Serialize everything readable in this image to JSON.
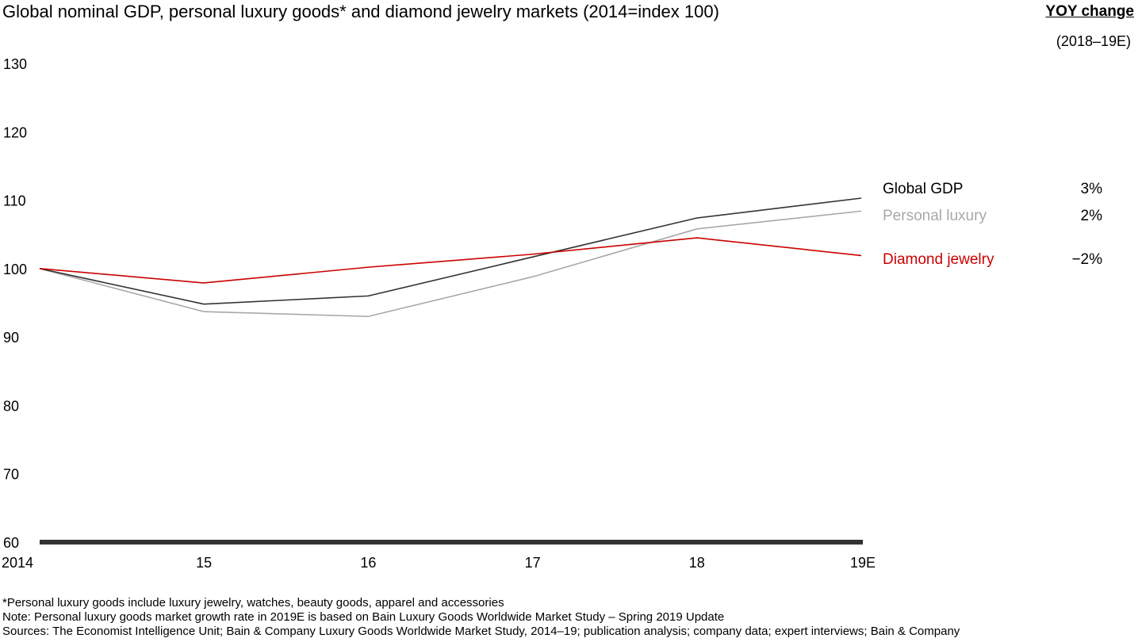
{
  "chart_data": {
    "type": "line",
    "title": "Global nominal GDP, personal luxury goods* and diamond jewelry markets (2014=index 100)",
    "x": [
      "2014",
      "15",
      "16",
      "17",
      "18",
      "19E"
    ],
    "ylim": [
      60,
      130
    ],
    "yticks": [
      60,
      70,
      80,
      90,
      100,
      110,
      120,
      130
    ],
    "grid": false,
    "legend": "right",
    "yoy_header": "YOY change",
    "yoy_period": "(2018–19E)",
    "series": [
      {
        "name": "Global GDP",
        "color": "#333333",
        "values": [
          100,
          94.8,
          96.0,
          101.7,
          107.4,
          110.3
        ],
        "yoy": "3%"
      },
      {
        "name": "Personal luxury",
        "color": "#a8a8a8",
        "values": [
          100,
          93.7,
          93.0,
          98.8,
          105.8,
          108.4
        ],
        "yoy": "2%"
      },
      {
        "name": "Diamond jewelry",
        "color": "#cc0000",
        "values": [
          100,
          97.9,
          100.2,
          102.1,
          104.5,
          101.9
        ],
        "yoy": "−2%"
      }
    ]
  },
  "footnotes": {
    "asterisk": "*Personal luxury goods include luxury jewelry, watches, beauty goods, apparel and accessories",
    "note": "Note: Personal luxury goods market growth rate in 2019E is based on Bain Luxury Goods Worldwide Market Study – Spring 2019 Update",
    "sources": "Sources: The Economist Intelligence Unit; Bain & Company Luxury Goods Worldwide Market Study, 2014–19; publication analysis; company data; expert interviews; Bain & Company"
  }
}
